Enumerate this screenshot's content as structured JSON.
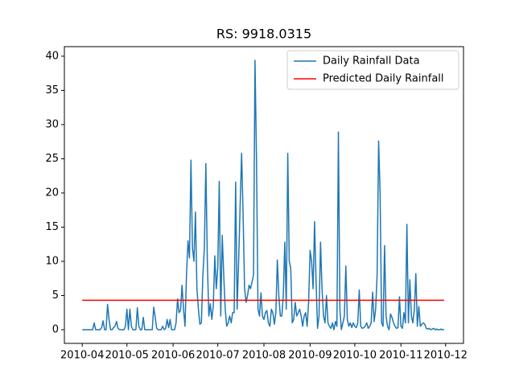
{
  "chart_data": {
    "type": "line",
    "title": "RS: 9918.0315",
    "series": [
      {
        "name": "Daily Rainfall Data",
        "color": "#1f77b4",
        "values": [
          0,
          0,
          0,
          0,
          0,
          0,
          0,
          0,
          1.0,
          0,
          0,
          0,
          0,
          0.3,
          1.3,
          0,
          0,
          3.7,
          1.5,
          0,
          0,
          0.3,
          0.5,
          1.2,
          0.2,
          0,
          0,
          0,
          0,
          0.5,
          3.0,
          0,
          3.0,
          0.5,
          0,
          0,
          0,
          3.2,
          0.5,
          0,
          0,
          1.8,
          0,
          0,
          0,
          0,
          0,
          0,
          3.3,
          1.8,
          0.2,
          0,
          0,
          0,
          0.5,
          0,
          0.2,
          1.5,
          0.3,
          1.5,
          0,
          0,
          0,
          1.0,
          4.5,
          2.5,
          2.8,
          6.5,
          3.0,
          0.5,
          8.0,
          13.0,
          10.5,
          24.8,
          12.0,
          10.0,
          17.2,
          6.0,
          3.0,
          0.8,
          1.0,
          8.0,
          12.0,
          24.3,
          10.0,
          2.0,
          3.8,
          1.5,
          3.5,
          10.8,
          6.0,
          9.0,
          21.7,
          2.0,
          13.8,
          8.0,
          3.0,
          0.5,
          1.0,
          2.0,
          1.0,
          2.5,
          2.5,
          21.6,
          3.0,
          10.0,
          18.0,
          25.8,
          17.0,
          6.0,
          4.0,
          5.0,
          6.5,
          6.0,
          7.0,
          8.0,
          39.4,
          25.0,
          3.0,
          2.0,
          5.4,
          2.0,
          1.5,
          2.5,
          2.8,
          1.0,
          0.5,
          3.0,
          2.5,
          0.8,
          2.5,
          10.2,
          5.0,
          2.0,
          2.0,
          5.0,
          12.8,
          3.0,
          25.8,
          10.0,
          9.0,
          1.0,
          1.5,
          4.0,
          2.0,
          2.5,
          3.0,
          2.0,
          0.5,
          2.0,
          2.5,
          0.5,
          4.0,
          11.6,
          10.0,
          6.0,
          15.8,
          7.0,
          0.2,
          2.0,
          12.8,
          6.0,
          2.0,
          1.0,
          5.0,
          1.0,
          0.5,
          0.2,
          1.0,
          0,
          1.2,
          0.5,
          28.9,
          3.0,
          0,
          1.0,
          2.0,
          9.3,
          1.5,
          0.5,
          1.0,
          0.3,
          1.0,
          0.5,
          0.3,
          1.0,
          5.8,
          0.5,
          0.2,
          0.3,
          0.5,
          1.0,
          0.2,
          0.5,
          1.0,
          5.5,
          1.2,
          3.0,
          8.0,
          27.6,
          20.0,
          1.0,
          0.5,
          12.3,
          2.0,
          0.5,
          0,
          2.3,
          1.8,
          1.0,
          0.5,
          0.2,
          0.3,
          4.8,
          0.5,
          0.2,
          2.5,
          1.0,
          15.4,
          1.0,
          7.3,
          2.0,
          1.0,
          3.0,
          8.2,
          0.5,
          3.4,
          0.5,
          0.8,
          1.0,
          0.8,
          0.2,
          0.1,
          0.2,
          0,
          0.1,
          0.2,
          0,
          0.1,
          0,
          0,
          0.1,
          0,
          0
        ]
      },
      {
        "name": "Predicted Daily Rainfall",
        "color": "#ff0000",
        "value": 4.3
      }
    ],
    "xlim": [
      -12,
      256
    ],
    "xticks": [
      {
        "value": 0,
        "label": "2010-04"
      },
      {
        "value": 30,
        "label": "2010-05"
      },
      {
        "value": 61,
        "label": "2010-06"
      },
      {
        "value": 91,
        "label": "2010-07"
      },
      {
        "value": 122,
        "label": "2010-08"
      },
      {
        "value": 153,
        "label": "2010-09"
      },
      {
        "value": 183,
        "label": "2010-10"
      },
      {
        "value": 214,
        "label": "2010-11"
      },
      {
        "value": 244,
        "label": "2010-12"
      }
    ],
    "ylim": [
      -2,
      41.4
    ],
    "yticks": [
      0,
      5,
      10,
      15,
      20,
      25,
      30,
      35,
      40
    ],
    "legend": "upper right"
  }
}
